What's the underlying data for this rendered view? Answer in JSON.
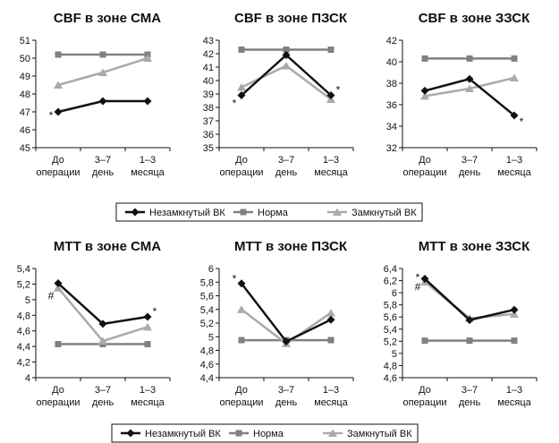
{
  "legend": [
    {
      "label": "Незамкнутый ВК",
      "color": "#111111",
      "marker": "diamond"
    },
    {
      "label": "Норма",
      "color": "#808080",
      "marker": "square"
    },
    {
      "label": "Замкнутый ВК",
      "color": "#aaaaaa",
      "marker": "triangle"
    }
  ],
  "chart_data": [
    {
      "type": "line",
      "title": "CBF в зоне СМА",
      "categories": [
        [
          "До",
          "операции"
        ],
        [
          "3–7",
          "день"
        ],
        [
          "1–3",
          "месяца"
        ]
      ],
      "ylim": [
        45,
        51
      ],
      "yticks": [
        "45",
        "46",
        "47",
        "48",
        "49",
        "50",
        "51"
      ],
      "series": [
        {
          "name": "Незамкнутый ВК",
          "values": [
            47.0,
            47.6,
            47.6
          ]
        },
        {
          "name": "Норма",
          "values": [
            50.2,
            50.2,
            50.2
          ]
        },
        {
          "name": "Замкнутый ВК",
          "values": [
            48.5,
            49.2,
            50.0
          ]
        }
      ],
      "annotations": [
        {
          "text": "*",
          "category": 0,
          "value": 46.8
        }
      ]
    },
    {
      "type": "line",
      "title": "CBF в зоне ПЗСК",
      "categories": [
        [
          "До",
          "операции"
        ],
        [
          "3–7",
          "день"
        ],
        [
          "1–3",
          "месяца"
        ]
      ],
      "ylim": [
        35,
        43
      ],
      "yticks": [
        "35",
        "36",
        "37",
        "38",
        "39",
        "40",
        "41",
        "42",
        "43"
      ],
      "series": [
        {
          "name": "Незамкнутый ВК",
          "values": [
            38.9,
            41.9,
            38.9
          ]
        },
        {
          "name": "Норма",
          "values": [
            42.3,
            42.3,
            42.3
          ]
        },
        {
          "name": "Замкнутый ВК",
          "values": [
            39.5,
            41.1,
            38.6
          ]
        }
      ],
      "annotations": [
        {
          "text": "*",
          "category": 0,
          "value": 38.3
        },
        {
          "text": "*",
          "category": 2,
          "value": 39.3
        }
      ]
    },
    {
      "type": "line",
      "title": "CBF в зоне ЗЗСК",
      "categories": [
        [
          "До",
          "операции"
        ],
        [
          "3–7",
          "день"
        ],
        [
          "1–3",
          "месяца"
        ]
      ],
      "ylim": [
        32,
        42
      ],
      "yticks": [
        "32",
        "34",
        "36",
        "38",
        "40",
        "42"
      ],
      "series": [
        {
          "name": "Незамкнутый ВК",
          "values": [
            37.3,
            38.4,
            35.0
          ]
        },
        {
          "name": "Норма",
          "values": [
            40.3,
            40.3,
            40.3
          ]
        },
        {
          "name": "Замкнутый ВК",
          "values": [
            36.8,
            37.5,
            38.5
          ]
        }
      ],
      "annotations": [
        {
          "text": "*",
          "category": 2,
          "value": 34.4
        }
      ]
    },
    {
      "type": "line",
      "title": "MTT в зоне СМА",
      "categories": [
        [
          "До",
          "операции"
        ],
        [
          "3–7",
          "день"
        ],
        [
          "1–3",
          "месяца"
        ]
      ],
      "ylim": [
        4.0,
        5.4
      ],
      "yticks": [
        "4",
        "4,2",
        "4,4",
        "4,6",
        "4,8",
        "5",
        "5,2",
        "5,4"
      ],
      "series": [
        {
          "name": "Незамкнутый ВК",
          "values": [
            5.21,
            4.69,
            4.78
          ]
        },
        {
          "name": "Норма",
          "values": [
            4.43,
            4.43,
            4.43
          ]
        },
        {
          "name": "Замкнутый ВК",
          "values": [
            5.15,
            4.47,
            4.65
          ]
        }
      ],
      "annotations": [
        {
          "text": "#",
          "category": 0,
          "value": 5.05
        },
        {
          "text": "*",
          "category": 2,
          "value": 4.85
        }
      ]
    },
    {
      "type": "line",
      "title": "MTT в зоне ПЗСК",
      "categories": [
        [
          "До",
          "операции"
        ],
        [
          "3–7",
          "день"
        ],
        [
          "1–3",
          "месяца"
        ]
      ],
      "ylim": [
        4.4,
        6.0
      ],
      "yticks": [
        "4,4",
        "4,6",
        "4,8",
        "5",
        "5,2",
        "5,4",
        "5,6",
        "5,8",
        "6"
      ],
      "series": [
        {
          "name": "Незамкнутый ВК",
          "values": [
            5.78,
            4.93,
            5.25
          ]
        },
        {
          "name": "Норма",
          "values": [
            4.95,
            4.95,
            4.95
          ]
        },
        {
          "name": "Замкнутый ВК",
          "values": [
            5.4,
            4.9,
            5.35
          ]
        }
      ],
      "annotations": [
        {
          "text": "*",
          "category": 0,
          "value": 5.85
        }
      ]
    },
    {
      "type": "line",
      "title": "MTT в зоне ЗЗСК",
      "categories": [
        [
          "До",
          "операции"
        ],
        [
          "3–7",
          "день"
        ],
        [
          "1–3",
          "месяца"
        ]
      ],
      "ylim": [
        4.6,
        6.4
      ],
      "yticks": [
        "4,6",
        "4,8",
        "5",
        "5,2",
        "5,4",
        "5,6",
        "5,8",
        "6",
        "6,2",
        "6,4"
      ],
      "series": [
        {
          "name": "Незамкнутый ВК",
          "values": [
            6.23,
            5.55,
            5.72
          ]
        },
        {
          "name": "Норма",
          "values": [
            5.21,
            5.21,
            5.21
          ]
        },
        {
          "name": "Замкнутый ВК",
          "values": [
            6.18,
            5.58,
            5.65
          ]
        }
      ],
      "annotations": [
        {
          "text": "*",
          "category": 0,
          "value": 6.25
        },
        {
          "text": "#",
          "category": 0,
          "value": 6.1
        }
      ]
    }
  ]
}
